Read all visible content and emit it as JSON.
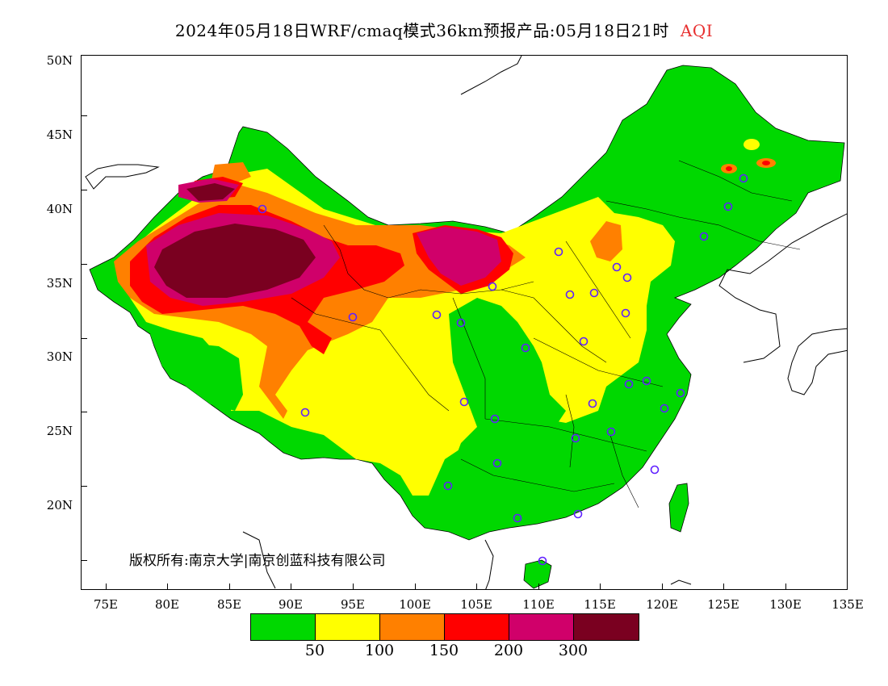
{
  "header": {
    "title": "2024年05月18日WRF/cmaq模式36km预报产品:05月18日21时",
    "variable": "AQI"
  },
  "axes": {
    "lat_labels": [
      "50N",
      "45N",
      "40N",
      "35N",
      "30N",
      "25N",
      "20N"
    ],
    "lon_labels": [
      "75E",
      "80E",
      "85E",
      "90E",
      "95E",
      "100E",
      "105E",
      "110E",
      "115E",
      "120E",
      "125E",
      "130E",
      "135E"
    ]
  },
  "copyright": "版权所有:南京大学|南京创蓝科技有限公司",
  "legend": {
    "colors": [
      "#00d800",
      "#ffff00",
      "#ff8000",
      "#ff0000",
      "#d0006a",
      "#7a0020"
    ],
    "labels": [
      "50",
      "100",
      "150",
      "200",
      "300"
    ]
  },
  "markers": {
    "color": "#6020ff"
  }
}
